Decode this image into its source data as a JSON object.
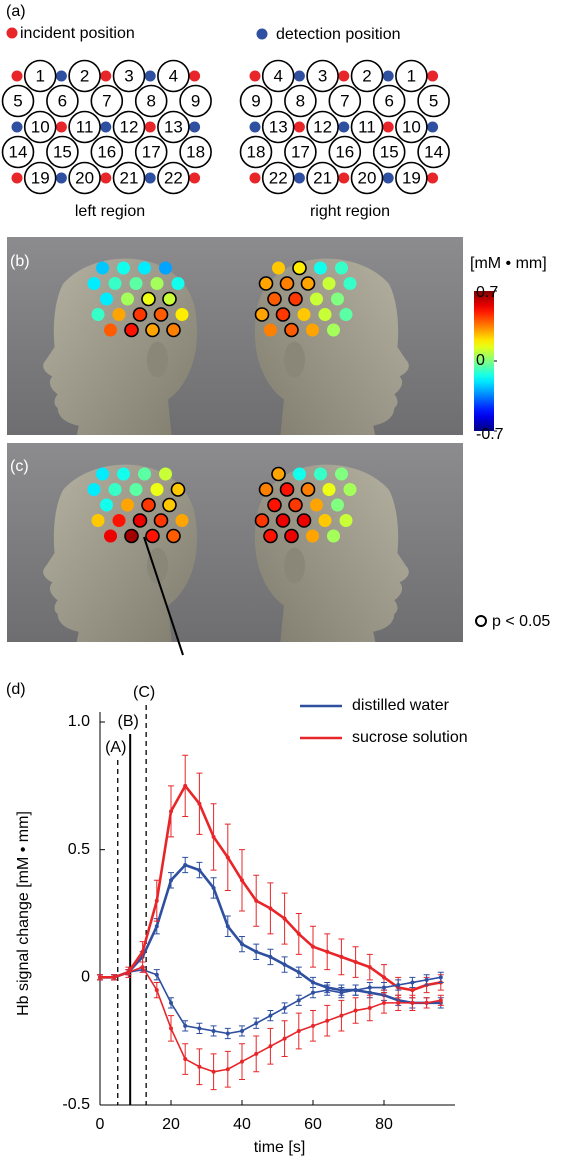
{
  "panel_a": {
    "label": "(a)",
    "incident_label": "incident position",
    "detection_label": "detection position",
    "regions": [
      {
        "caption": "left region",
        "rows": [
          [
            1,
            2,
            3,
            4
          ],
          [
            5,
            6,
            7,
            8,
            9
          ],
          [
            10,
            11,
            12,
            13
          ],
          [
            14,
            15,
            16,
            17,
            18
          ],
          [
            19,
            20,
            21,
            22
          ]
        ]
      },
      {
        "caption": "right region",
        "rows": [
          [
            4,
            3,
            2,
            1
          ],
          [
            9,
            8,
            7,
            6,
            5
          ],
          [
            13,
            12,
            11,
            10
          ],
          [
            18,
            17,
            16,
            15,
            14
          ],
          [
            22,
            21,
            20,
            19
          ]
        ]
      }
    ]
  },
  "panel_b": {
    "label": "(b)",
    "left": [
      -0.25,
      -0.15,
      -0.2,
      -0.3,
      -0.2,
      -0.1,
      -0.05,
      0.05,
      -0.15,
      -0.2,
      0.05,
      0.15,
      0.1,
      -0.1,
      0.3,
      0.45,
      0.4,
      0.2,
      0.4,
      0.5,
      0.3,
      0.35
    ],
    "right": [
      -0.1,
      -0.15,
      0.2,
      0.25,
      -0.1,
      0.1,
      0.3,
      0.35,
      0.3,
      0.0,
      0.1,
      0.45,
      0.4,
      -0.05,
      0.1,
      0.25,
      0.45,
      0.3,
      0.05,
      0.3,
      0.4,
      0.35
    ],
    "significant_left": [
      12,
      13,
      16,
      17,
      20,
      21,
      22
    ],
    "significant_right": [
      3,
      7,
      8,
      9,
      12,
      13,
      17,
      18,
      21
    ]
  },
  "panel_c": {
    "label": "(c)",
    "left": [
      -0.2,
      -0.15,
      -0.05,
      0.1,
      -0.2,
      -0.1,
      -0.05,
      0.15,
      0.25,
      -0.15,
      0.3,
      0.45,
      0.25,
      0.25,
      0.5,
      0.55,
      0.45,
      0.3,
      0.55,
      0.65,
      0.5,
      0.4
    ],
    "right": [
      0.0,
      -0.1,
      -0.15,
      0.3,
      0.05,
      0.15,
      0.35,
      0.5,
      0.35,
      0.0,
      0.3,
      0.45,
      0.5,
      0.1,
      0.25,
      0.55,
      0.55,
      0.45,
      0.05,
      0.3,
      0.55,
      0.5
    ],
    "significant_left": [
      9,
      12,
      13,
      16,
      17,
      20,
      21,
      22
    ],
    "significant_right": [
      4,
      7,
      8,
      9,
      12,
      13,
      16,
      17,
      18,
      21,
      22
    ]
  },
  "colorbar": {
    "label": "[mM • mm]",
    "lim": [
      -0.7,
      0.7
    ],
    "ticks": [
      -0.7,
      0,
      0.7
    ]
  },
  "significance_label": "p < 0.05",
  "chart_data": {
    "type": "line",
    "label": "(d)",
    "x_label": "time [s]",
    "y_label": "Hb signal change [mM • mm]",
    "x": [
      0,
      4,
      8,
      12,
      16,
      20,
      24,
      28,
      32,
      36,
      40,
      44,
      48,
      52,
      56,
      60,
      64,
      68,
      72,
      76,
      80,
      84,
      88,
      92,
      96
    ],
    "xlim": [
      0,
      100
    ],
    "xticks": [
      0,
      20,
      40,
      60,
      80
    ],
    "ylim": [
      -0.5,
      1.0
    ],
    "yticks": [
      -0.5,
      0,
      0.5,
      {
        "value": 1,
        "label": "1.0"
      }
    ],
    "markers": [
      {
        "x": 5,
        "label": "(A)",
        "style": "dashed"
      },
      {
        "x": 8.5,
        "label": "(B)",
        "style": "solid"
      },
      {
        "x": 13,
        "label": "(C)",
        "style": "dashed"
      }
    ],
    "series": [
      {
        "name": "distilled water",
        "color": "#2f4fa0",
        "values": [
          0,
          0,
          0.02,
          0.08,
          0.2,
          0.38,
          0.44,
          0.42,
          0.35,
          0.2,
          0.13,
          0.1,
          0.08,
          0.05,
          0.02,
          -0.02,
          -0.04,
          -0.05,
          -0.05,
          -0.06,
          -0.07,
          -0.09,
          -0.1,
          -0.1,
          -0.1
        ],
        "errors": [
          0.01,
          0.01,
          0.01,
          0.02,
          0.03,
          0.03,
          0.03,
          0.03,
          0.04,
          0.04,
          0.03,
          0.03,
          0.03,
          0.03,
          0.02,
          0.02,
          0.02,
          0.02,
          0.02,
          0.02,
          0.02,
          0.02,
          0.02,
          0.02,
          0.02
        ]
      },
      {
        "name": "sucrose solution",
        "color": "#e8262a",
        "values": [
          0,
          0,
          0.02,
          0.1,
          0.3,
          0.65,
          0.75,
          0.68,
          0.55,
          0.47,
          0.38,
          0.3,
          0.27,
          0.23,
          0.17,
          0.12,
          0.1,
          0.08,
          0.06,
          0.04,
          0,
          -0.04,
          -0.05,
          -0.03,
          -0.02
        ],
        "errors": [
          0.01,
          0.01,
          0.02,
          0.04,
          0.08,
          0.1,
          0.12,
          0.12,
          0.13,
          0.13,
          0.12,
          0.1,
          0.1,
          0.1,
          0.08,
          0.08,
          0.07,
          0.07,
          0.06,
          0.05,
          0.05,
          0.04,
          0.03,
          0.03,
          0.03
        ]
      },
      {
        "color": "#2f4fa0",
        "values": [
          0,
          0,
          0.02,
          0.03,
          0.01,
          -0.1,
          -0.19,
          -0.2,
          -0.21,
          -0.22,
          -0.21,
          -0.18,
          -0.15,
          -0.12,
          -0.09,
          -0.06,
          -0.05,
          -0.06,
          -0.05,
          -0.04,
          -0.04,
          -0.03,
          -0.02,
          -0.01,
          0
        ],
        "errors": [
          0.01,
          0.01,
          0.01,
          0.01,
          0.02,
          0.02,
          0.02,
          0.02,
          0.02,
          0.02,
          0.02,
          0.02,
          0.02,
          0.02,
          0.02,
          0.02,
          0.02,
          0.02,
          0.02,
          0.02,
          0.02,
          0.02,
          0.02,
          0.02,
          0.02
        ]
      },
      {
        "color": "#e8262a",
        "values": [
          0,
          0,
          0.02,
          0.04,
          -0.05,
          -0.2,
          -0.32,
          -0.35,
          -0.37,
          -0.36,
          -0.33,
          -0.3,
          -0.27,
          -0.24,
          -0.21,
          -0.19,
          -0.17,
          -0.15,
          -0.13,
          -0.12,
          -0.1,
          -0.1,
          -0.1,
          -0.1,
          -0.09
        ],
        "errors": [
          0.01,
          0.01,
          0.01,
          0.02,
          0.03,
          0.05,
          0.06,
          0.07,
          0.07,
          0.07,
          0.07,
          0.07,
          0.07,
          0.07,
          0.07,
          0.06,
          0.06,
          0.06,
          0.05,
          0.05,
          0.04,
          0.03,
          0.03,
          0.02,
          0.02
        ]
      }
    ]
  }
}
